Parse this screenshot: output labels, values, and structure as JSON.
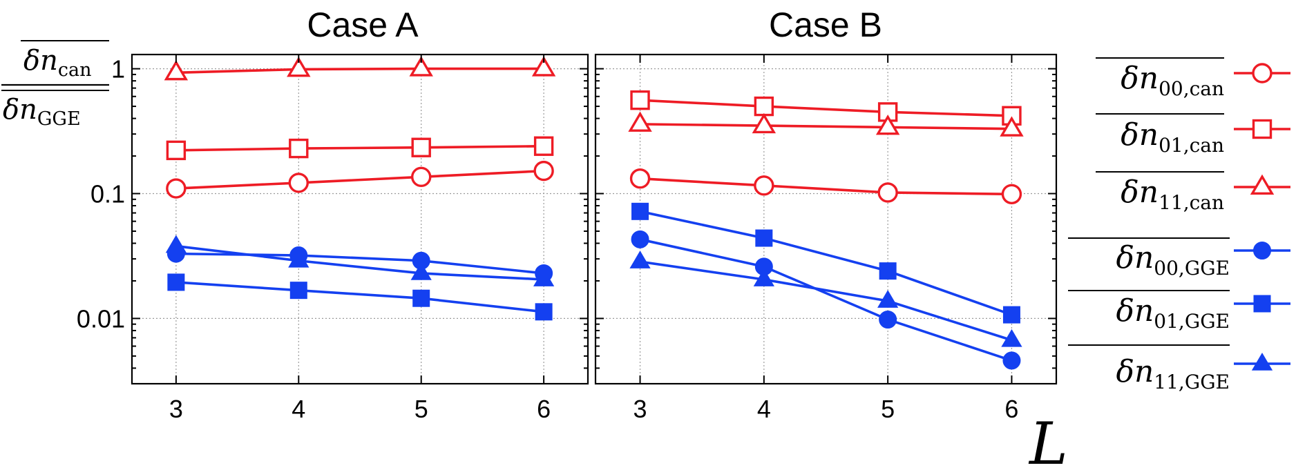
{
  "chart_data": {
    "type": "line",
    "yscale": "log",
    "ylim": [
      0.003,
      1.3
    ],
    "xlim": [
      2.64,
      6.36
    ],
    "x": [
      3,
      4,
      5,
      6
    ],
    "x_ticks": [
      "3",
      "4",
      "5",
      "6"
    ],
    "y_ticks": [
      {
        "value": 1,
        "label": "1"
      },
      {
        "value": 0.1,
        "label": "0.1"
      },
      {
        "value": 0.01,
        "label": "0.01"
      }
    ],
    "xlabel": "L",
    "ylabel": {
      "numerator": "δn",
      "numerator_sub": "can",
      "denominator": "δn",
      "denominator_sub": "GGE"
    },
    "colors": {
      "can": "#ee1c25",
      "gge": "#1440f0"
    },
    "series_styles": [
      {
        "key": "n00_can",
        "marker": "circle",
        "filled": false,
        "group": "can",
        "label_main": "δn",
        "label_sub": "00,can"
      },
      {
        "key": "n01_can",
        "marker": "square",
        "filled": false,
        "group": "can",
        "label_main": "δn",
        "label_sub": "01,can"
      },
      {
        "key": "n11_can",
        "marker": "triangle",
        "filled": false,
        "group": "can",
        "label_main": "δn",
        "label_sub": "11,can"
      },
      {
        "key": "n00_gge",
        "marker": "circle",
        "filled": true,
        "group": "gge",
        "label_main": "δn",
        "label_sub": "00,GGE"
      },
      {
        "key": "n01_gge",
        "marker": "square",
        "filled": true,
        "group": "gge",
        "label_main": "δn",
        "label_sub": "01,GGE"
      },
      {
        "key": "n11_gge",
        "marker": "triangle",
        "filled": true,
        "group": "gge",
        "label_main": "δn",
        "label_sub": "11,GGE"
      }
    ],
    "panels": [
      {
        "title": "Case A",
        "series": {
          "n00_can": [
            0.11,
            0.122,
            0.136,
            0.152
          ],
          "n01_can": [
            0.222,
            0.23,
            0.234,
            0.24
          ],
          "n11_can": [
            0.93,
            0.99,
            1.0,
            1.0
          ],
          "n00_gge": [
            0.033,
            0.032,
            0.029,
            0.023
          ],
          "n01_gge": [
            0.0195,
            0.0168,
            0.0145,
            0.0113
          ],
          "n11_gge": [
            0.038,
            0.029,
            0.023,
            0.0205
          ]
        }
      },
      {
        "title": "Case B",
        "series": {
          "n00_can": [
            0.132,
            0.116,
            0.102,
            0.099
          ],
          "n01_can": [
            0.56,
            0.5,
            0.45,
            0.42
          ],
          "n11_can": [
            0.36,
            0.35,
            0.34,
            0.33
          ],
          "n00_gge": [
            0.043,
            0.026,
            0.0098,
            0.0046
          ],
          "n01_gge": [
            0.072,
            0.044,
            0.024,
            0.0107
          ],
          "n11_gge": [
            0.0285,
            0.0205,
            0.0138,
            0.0067
          ]
        }
      }
    ]
  }
}
